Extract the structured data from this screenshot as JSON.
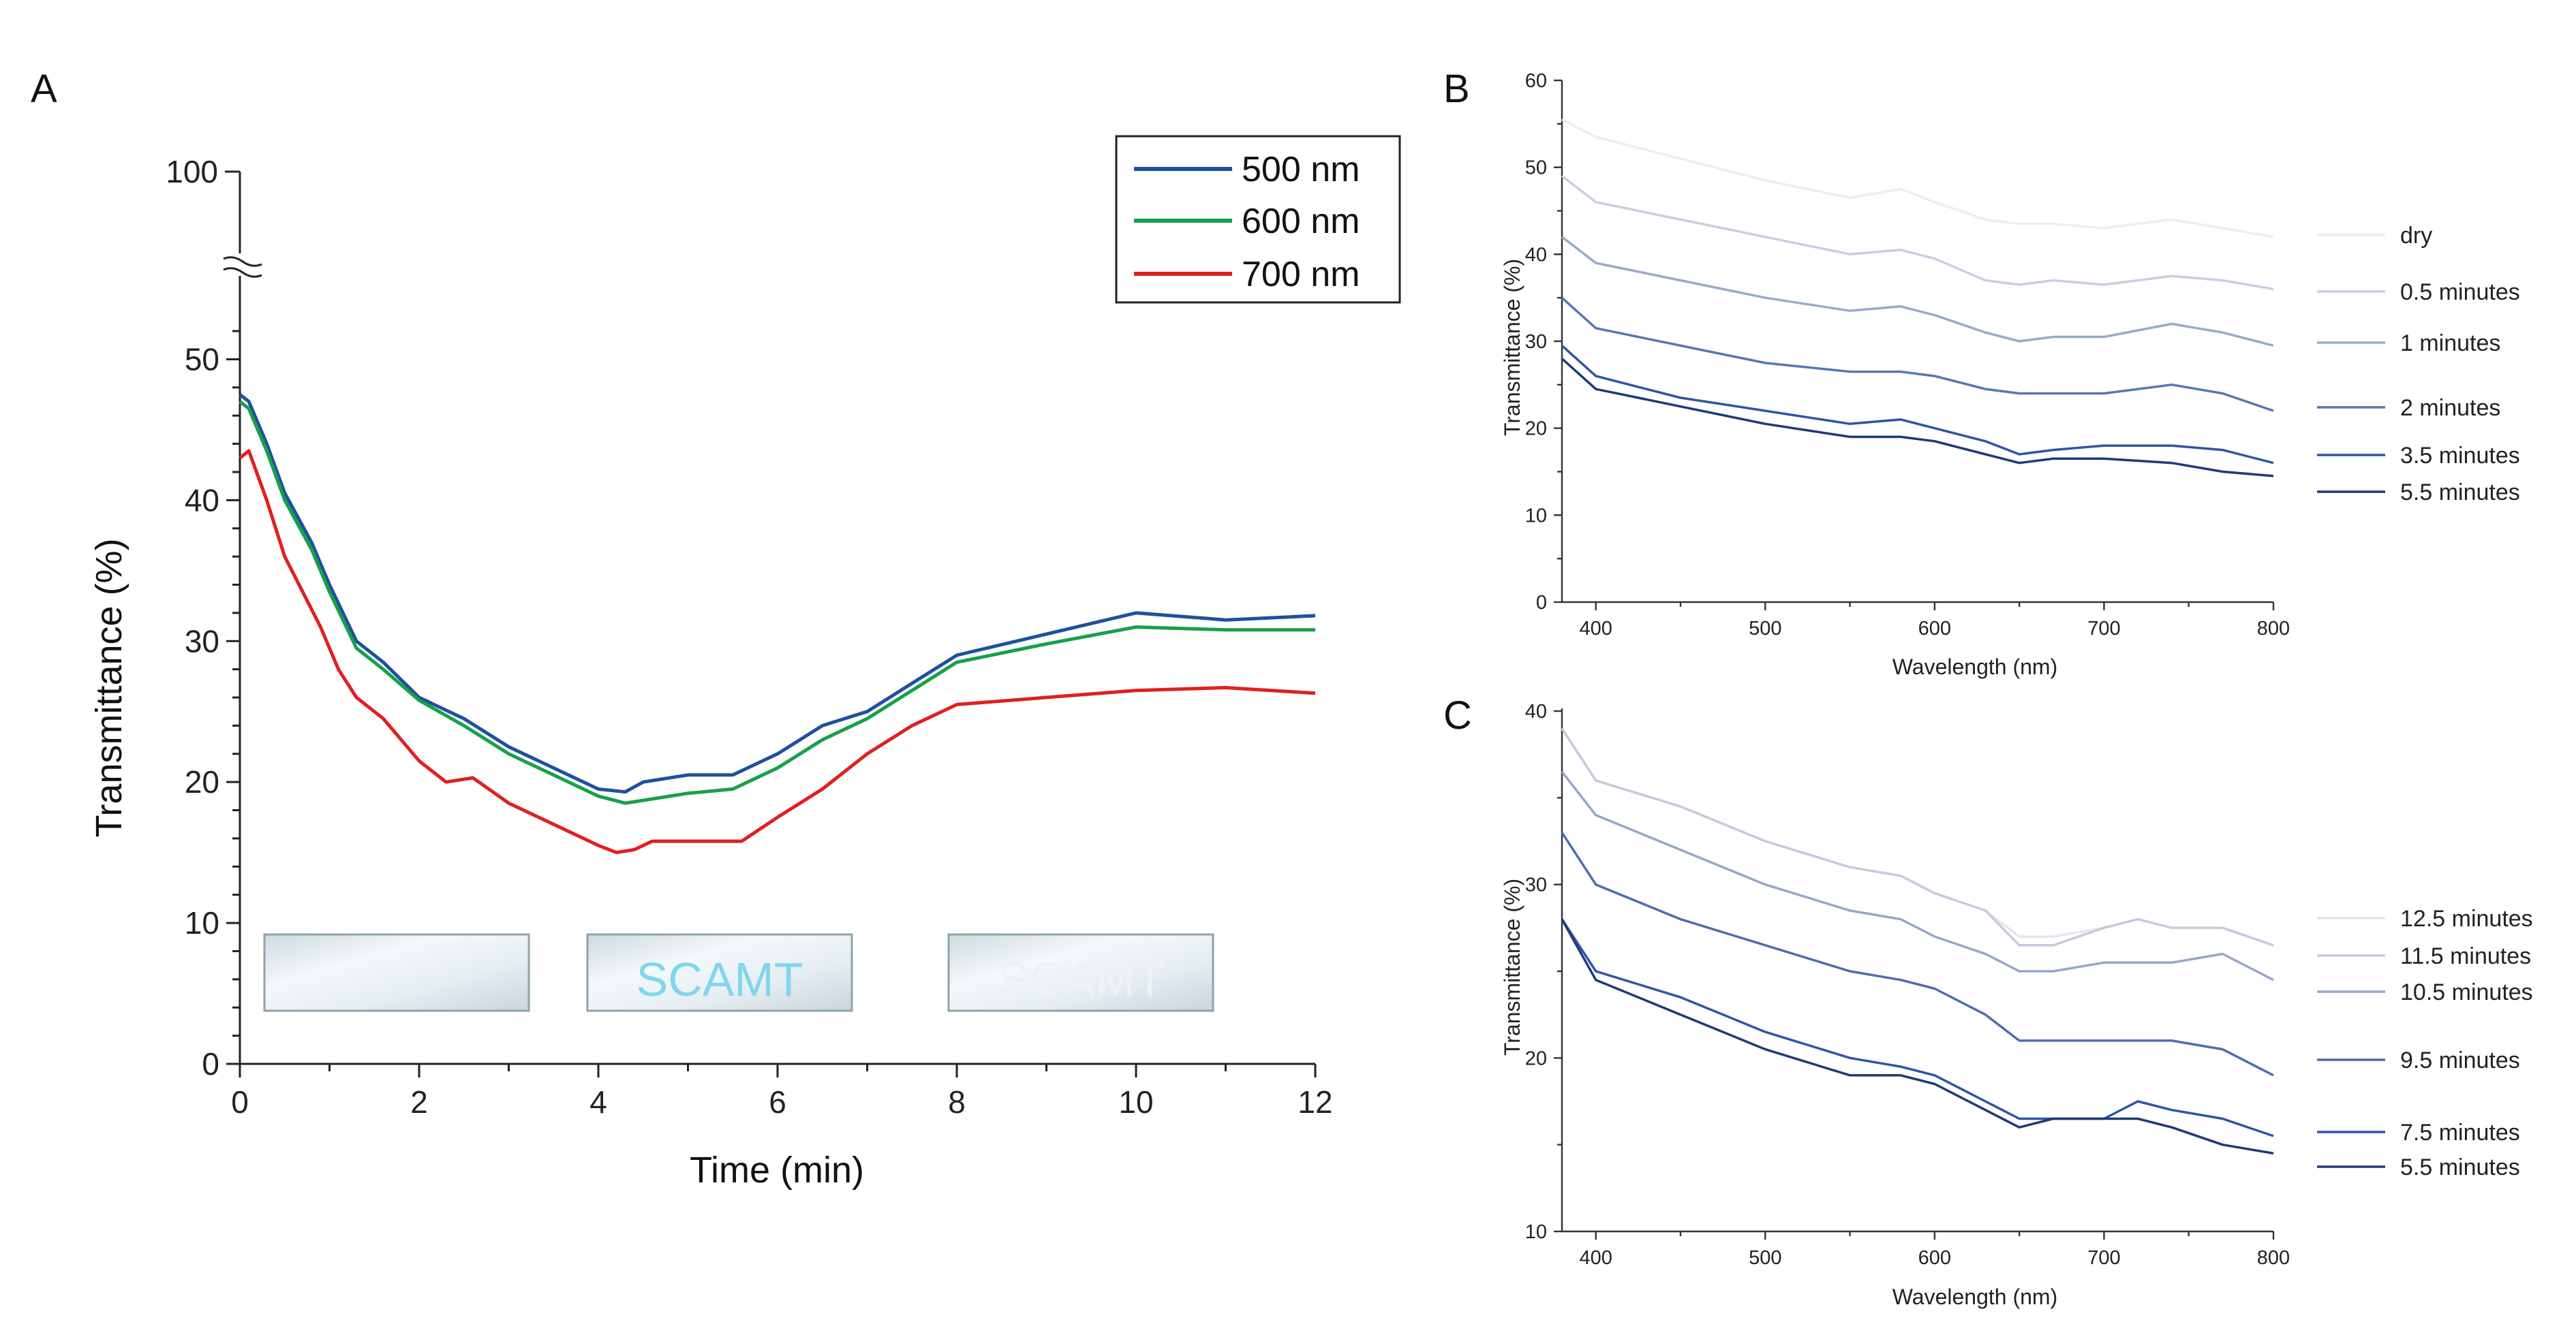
{
  "panels": {
    "A": {
      "letter": "A",
      "chart_data": {
        "type": "line",
        "title": "",
        "xlabel": "Time (min)",
        "ylabel": "Transmittance (%)",
        "xlim": [
          0,
          12
        ],
        "ylim": [
          0,
          55
        ],
        "y_break": true,
        "y_top_tick": "100",
        "x_ticks": [
          0,
          2,
          4,
          6,
          8,
          10,
          12
        ],
        "y_ticks": [
          0,
          10,
          20,
          30,
          40,
          50
        ],
        "legend_position": "top-right",
        "series": [
          {
            "name": "500 nm",
            "color": "#1f4fa0",
            "x": [
              0,
              0.1,
              0.3,
              0.5,
              0.8,
              1.0,
              1.3,
              1.6,
              2.0,
              2.5,
              3.0,
              3.5,
              4.0,
              4.3,
              4.5,
              5.0,
              5.5,
              6.0,
              6.5,
              7.0,
              7.5,
              8.0,
              9.0,
              10.0,
              11.0,
              12.0
            ],
            "y": [
              47.5,
              47.0,
              44.0,
              40.5,
              37.0,
              34.0,
              30.0,
              28.5,
              26.0,
              24.5,
              22.5,
              21.0,
              19.5,
              19.3,
              20.0,
              20.5,
              20.5,
              22.0,
              24.0,
              25.0,
              27.0,
              29.0,
              30.5,
              32.0,
              31.5,
              31.8
            ]
          },
          {
            "name": "600 nm",
            "color": "#16a04a",
            "x": [
              0,
              0.1,
              0.3,
              0.5,
              0.8,
              1.0,
              1.3,
              1.6,
              2.0,
              2.5,
              3.0,
              3.5,
              4.0,
              4.3,
              4.5,
              5.0,
              5.5,
              6.0,
              6.5,
              7.0,
              7.5,
              8.0,
              9.0,
              10.0,
              11.0,
              12.0
            ],
            "y": [
              47.0,
              46.5,
              43.5,
              40.0,
              36.5,
              33.5,
              29.5,
              28.0,
              25.8,
              24.0,
              22.0,
              20.5,
              19.0,
              18.5,
              18.7,
              19.2,
              19.5,
              21.0,
              23.0,
              24.5,
              26.5,
              28.5,
              29.8,
              31.0,
              30.8,
              30.8
            ]
          },
          {
            "name": "700 nm",
            "color": "#e02020",
            "x": [
              0,
              0.1,
              0.3,
              0.5,
              0.7,
              0.9,
              1.1,
              1.3,
              1.6,
              2.0,
              2.3,
              2.6,
              3.0,
              3.5,
              4.0,
              4.2,
              4.4,
              4.6,
              5.0,
              5.6,
              6.0,
              6.5,
              7.0,
              7.5,
              8.0,
              9.0,
              10.0,
              11.0,
              12.0
            ],
            "y": [
              43.0,
              43.5,
              40.0,
              36.0,
              33.5,
              31.0,
              28.0,
              26.0,
              24.5,
              21.5,
              20.0,
              20.3,
              18.5,
              17.0,
              15.5,
              15.0,
              15.2,
              15.8,
              15.8,
              15.8,
              17.5,
              19.5,
              22.0,
              24.0,
              25.5,
              26.0,
              26.5,
              26.7,
              26.3
            ]
          }
        ]
      },
      "images": [
        {
          "name": "sample-dry-thumbnail",
          "text": "",
          "t": 0
        },
        {
          "name": "sample-4min-thumbnail",
          "text": "SCAMT",
          "t": 4
        },
        {
          "name": "sample-8min-thumbnail",
          "text": "SCAMT",
          "t": 8
        }
      ]
    },
    "B": {
      "letter": "B",
      "chart_data": {
        "type": "line",
        "title": "",
        "xlabel": "Wavelength (nm)",
        "ylabel": "Transmittance (%)",
        "xlim": [
          380,
          800
        ],
        "ylim": [
          0,
          60
        ],
        "x_ticks": [
          400,
          500,
          600,
          700,
          800
        ],
        "y_ticks": [
          0,
          10,
          20,
          30,
          40,
          50,
          60
        ],
        "legend_position": "right",
        "x": [
          380,
          400,
          450,
          500,
          550,
          580,
          600,
          630,
          650,
          670,
          700,
          740,
          770,
          800
        ],
        "series": [
          {
            "name": "dry",
            "color": "#eceef3",
            "y": [
              55.5,
              53.5,
              51.0,
              48.5,
              46.5,
              47.5,
              46.0,
              44.0,
              43.5,
              43.5,
              43.0,
              44.0,
              43.0,
              42.0
            ]
          },
          {
            "name": "0.5 minutes",
            "color": "#c8cfe0",
            "y": [
              49.0,
              46.0,
              44.0,
              42.0,
              40.0,
              40.5,
              39.5,
              37.0,
              36.5,
              37.0,
              36.5,
              37.5,
              37.0,
              36.0
            ]
          },
          {
            "name": "1 minutes",
            "color": "#9aa9cc",
            "y": [
              42.0,
              39.0,
              37.0,
              35.0,
              33.5,
              34.0,
              33.0,
              31.0,
              30.0,
              30.5,
              30.5,
              32.0,
              31.0,
              29.5
            ]
          },
          {
            "name": "2 minutes",
            "color": "#5677b6",
            "y": [
              35.0,
              31.5,
              29.5,
              27.5,
              26.5,
              26.5,
              26.0,
              24.5,
              24.0,
              24.0,
              24.0,
              25.0,
              24.0,
              22.0
            ]
          },
          {
            "name": "3.5 minutes",
            "color": "#2f55a6",
            "y": [
              29.5,
              26.0,
              23.5,
              22.0,
              20.5,
              21.0,
              20.0,
              18.5,
              17.0,
              17.5,
              18.0,
              18.0,
              17.5,
              16.0
            ]
          },
          {
            "name": "5.5 minutes",
            "color": "#1e3a7a",
            "y": [
              28.0,
              24.5,
              22.5,
              20.5,
              19.0,
              19.0,
              18.5,
              17.0,
              16.0,
              16.5,
              16.5,
              16.0,
              15.0,
              14.5
            ]
          }
        ]
      }
    },
    "C": {
      "letter": "C",
      "chart_data": {
        "type": "line",
        "title": "",
        "xlabel": "Wavelength (nm)",
        "ylabel": "Transmittance (%)",
        "xlim": [
          380,
          800
        ],
        "ylim": [
          10,
          40
        ],
        "x_ticks": [
          400,
          500,
          600,
          700,
          800
        ],
        "y_ticks": [
          10,
          20,
          30,
          40
        ],
        "legend_position": "right",
        "x": [
          380,
          400,
          450,
          500,
          550,
          580,
          600,
          630,
          650,
          670,
          700,
          720,
          740,
          770,
          800
        ],
        "series": [
          {
            "name": "12.5 minutes",
            "color": "#e4e7ef",
            "y": [
              39.0,
              36.0,
              34.5,
              32.5,
              31.0,
              30.5,
              29.5,
              28.5,
              27.0,
              27.0,
              27.5,
              28.0,
              27.5,
              27.5,
              26.5
            ]
          },
          {
            "name": "11.5 minutes",
            "color": "#c4cbde",
            "y": [
              39.0,
              36.0,
              34.5,
              32.5,
              31.0,
              30.5,
              29.5,
              28.5,
              26.5,
              26.5,
              27.5,
              28.0,
              27.5,
              27.5,
              26.5
            ]
          },
          {
            "name": "10.5 minutes",
            "color": "#97a6c9",
            "y": [
              36.5,
              34.0,
              32.0,
              30.0,
              28.5,
              28.0,
              27.0,
              26.0,
              25.0,
              25.0,
              25.5,
              25.5,
              25.5,
              26.0,
              24.5
            ]
          },
          {
            "name": "9.5 minutes",
            "color": "#4e6db0",
            "y": [
              33.0,
              30.0,
              28.0,
              26.5,
              25.0,
              24.5,
              24.0,
              22.5,
              21.0,
              21.0,
              21.0,
              21.0,
              21.0,
              20.5,
              19.0
            ]
          },
          {
            "name": "7.5 minutes",
            "color": "#2f55a6",
            "y": [
              28.0,
              25.0,
              23.5,
              21.5,
              20.0,
              19.5,
              19.0,
              17.5,
              16.5,
              16.5,
              16.5,
              17.5,
              17.0,
              16.5,
              15.5
            ]
          },
          {
            "name": "5.5 minutes",
            "color": "#1e3a7a",
            "y": [
              28.0,
              24.5,
              22.5,
              20.5,
              19.0,
              19.0,
              18.5,
              17.0,
              16.0,
              16.5,
              16.5,
              16.5,
              16.0,
              15.0,
              14.5
            ]
          }
        ]
      }
    }
  }
}
